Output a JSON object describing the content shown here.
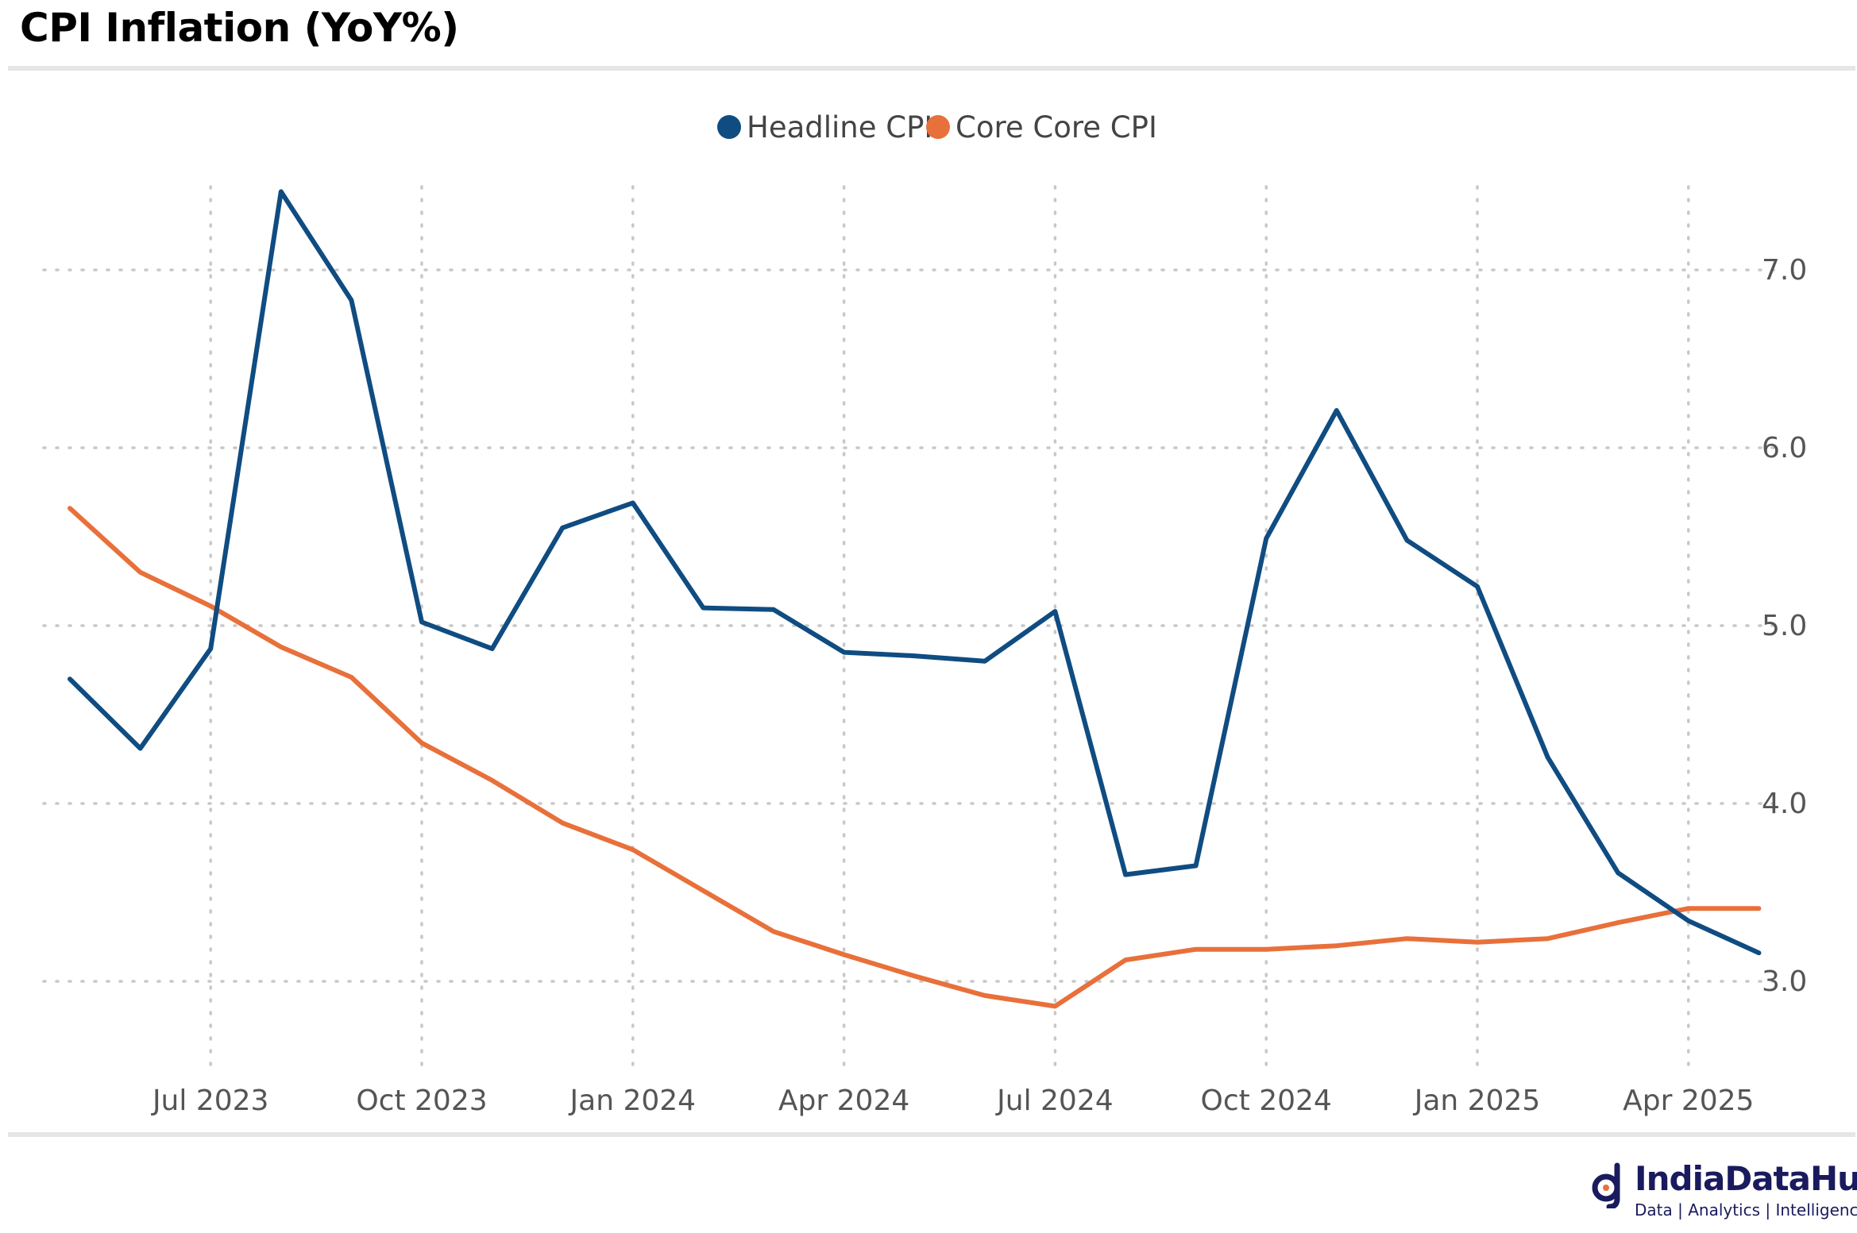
{
  "title": "CPI Inflation (YoY%)",
  "brand": {
    "name": "IndiaDataHub",
    "tagline": "Data | Analytics | Intelligence"
  },
  "chart_data": {
    "type": "line",
    "title": "CPI Inflation (YoY%)",
    "x": [
      "2023-05",
      "2023-06",
      "2023-07",
      "2023-08",
      "2023-09",
      "2023-10",
      "2023-11",
      "2023-12",
      "2024-01",
      "2024-02",
      "2024-03",
      "2024-04",
      "2024-05",
      "2024-06",
      "2024-07",
      "2024-08",
      "2024-09",
      "2024-10",
      "2024-11",
      "2024-12",
      "2025-01",
      "2025-02",
      "2025-03",
      "2025-04",
      "2025-05"
    ],
    "x_ticks": [
      {
        "date": "2023-07",
        "label": "Jul 2023"
      },
      {
        "date": "2023-10",
        "label": "Oct 2023"
      },
      {
        "date": "2024-01",
        "label": "Jan 2024"
      },
      {
        "date": "2024-04",
        "label": "Apr 2024"
      },
      {
        "date": "2024-07",
        "label": "Jul 2024"
      },
      {
        "date": "2024-10",
        "label": "Oct 2024"
      },
      {
        "date": "2025-01",
        "label": "Jan 2025"
      },
      {
        "date": "2025-04",
        "label": "Apr 2025"
      }
    ],
    "y_ticks": [
      {
        "value": 3.0,
        "label": "3.0"
      },
      {
        "value": 4.0,
        "label": "4.0"
      },
      {
        "value": 5.0,
        "label": "5.0"
      },
      {
        "value": 6.0,
        "label": "6.0"
      },
      {
        "value": 7.0,
        "label": "7.0"
      }
    ],
    "ylim": [
      2.5,
      7.5
    ],
    "y_axis_side": "right",
    "grid": true,
    "legend": "top-center",
    "series": [
      {
        "name": "Headline CPI",
        "color": "#0f4c81",
        "values": [
          4.7,
          4.31,
          4.87,
          7.44,
          6.83,
          5.02,
          4.87,
          5.55,
          5.69,
          5.1,
          5.09,
          4.85,
          4.83,
          4.8,
          5.08,
          3.6,
          3.65,
          5.49,
          6.21,
          5.48,
          5.22,
          4.26,
          3.61,
          3.34,
          3.16
        ]
      },
      {
        "name": "Core Core CPI",
        "color": "#e8703a",
        "values": [
          5.66,
          5.3,
          5.11,
          4.88,
          4.71,
          4.34,
          4.13,
          3.89,
          3.74,
          3.51,
          3.28,
          3.15,
          3.03,
          2.92,
          2.86,
          3.12,
          3.18,
          3.18,
          3.2,
          3.24,
          3.22,
          3.24,
          3.33,
          3.41,
          3.41
        ]
      }
    ]
  }
}
